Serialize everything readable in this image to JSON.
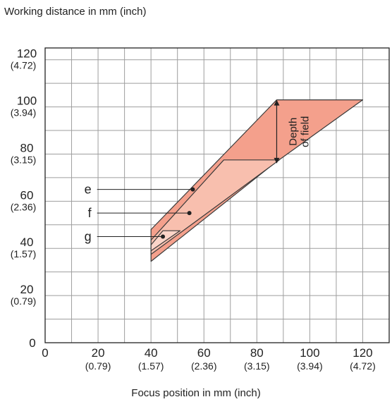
{
  "chart_data": {
    "type": "area",
    "title": "",
    "xlabel": "Focus position in mm (inch)",
    "ylabel": "Working distance in mm (inch)",
    "xlim": [
      0,
      130
    ],
    "ylim": [
      0,
      125
    ],
    "x_ticks": [
      {
        "value": 0,
        "mm": "0",
        "inch": ""
      },
      {
        "value": 20,
        "mm": "20",
        "inch": "(0.79)"
      },
      {
        "value": 40,
        "mm": "40",
        "inch": "(1.57)"
      },
      {
        "value": 60,
        "mm": "60",
        "inch": "(2.36)"
      },
      {
        "value": 80,
        "mm": "80",
        "inch": "(3.15)"
      },
      {
        "value": 100,
        "mm": "100",
        "inch": "(3.94)"
      },
      {
        "value": 120,
        "mm": "120",
        "inch": "(4.72)"
      }
    ],
    "y_ticks": [
      {
        "value": 0,
        "mm": "0",
        "inch": ""
      },
      {
        "value": 20,
        "mm": "20",
        "inch": "(0.79)"
      },
      {
        "value": 40,
        "mm": "40",
        "inch": "(1.57)"
      },
      {
        "value": 60,
        "mm": "60",
        "inch": "(2.36)"
      },
      {
        "value": 80,
        "mm": "80",
        "inch": "(3.15)"
      },
      {
        "value": 100,
        "mm": "100",
        "inch": "(3.94)"
      },
      {
        "value": 120,
        "mm": "120",
        "inch": "(4.72)"
      }
    ],
    "grid": true,
    "minor_grid_step": 10,
    "regions": [
      {
        "name": "e",
        "color": "#f4a08c",
        "points": [
          [
            40,
            34.5
          ],
          [
            40,
            48
          ],
          [
            87.5,
            103
          ],
          [
            120,
            103
          ],
          [
            86.5,
            76
          ]
        ]
      },
      {
        "name": "f",
        "color": "#f8bfae",
        "points": [
          [
            40,
            37.5
          ],
          [
            40,
            43.5
          ],
          [
            67.5,
            77.5
          ],
          [
            88.5,
            77.5
          ],
          [
            55.8,
            50.5
          ]
        ]
      },
      {
        "name": "g",
        "color": "#fbd4c8",
        "points": [
          [
            40,
            39
          ],
          [
            40,
            41.5
          ],
          [
            44.5,
            47.5
          ],
          [
            51,
            47.5
          ]
        ]
      }
    ],
    "markers": [
      {
        "label": "e",
        "x": 55.8,
        "y": 65
      },
      {
        "label": "f",
        "x": 54.5,
        "y": 55
      },
      {
        "label": "g",
        "x": 44.5,
        "y": 45
      }
    ],
    "annotations": [
      {
        "text": "Depth",
        "x": 95
      },
      {
        "text": "of field",
        "x": 99.5
      }
    ],
    "depth_arrow": {
      "x": 87.5,
      "y_from": 76,
      "y_to": 103
    }
  },
  "colors": {
    "grid": "#9e9e9e",
    "axis": "#222222",
    "outline": "#3a3a3a"
  }
}
